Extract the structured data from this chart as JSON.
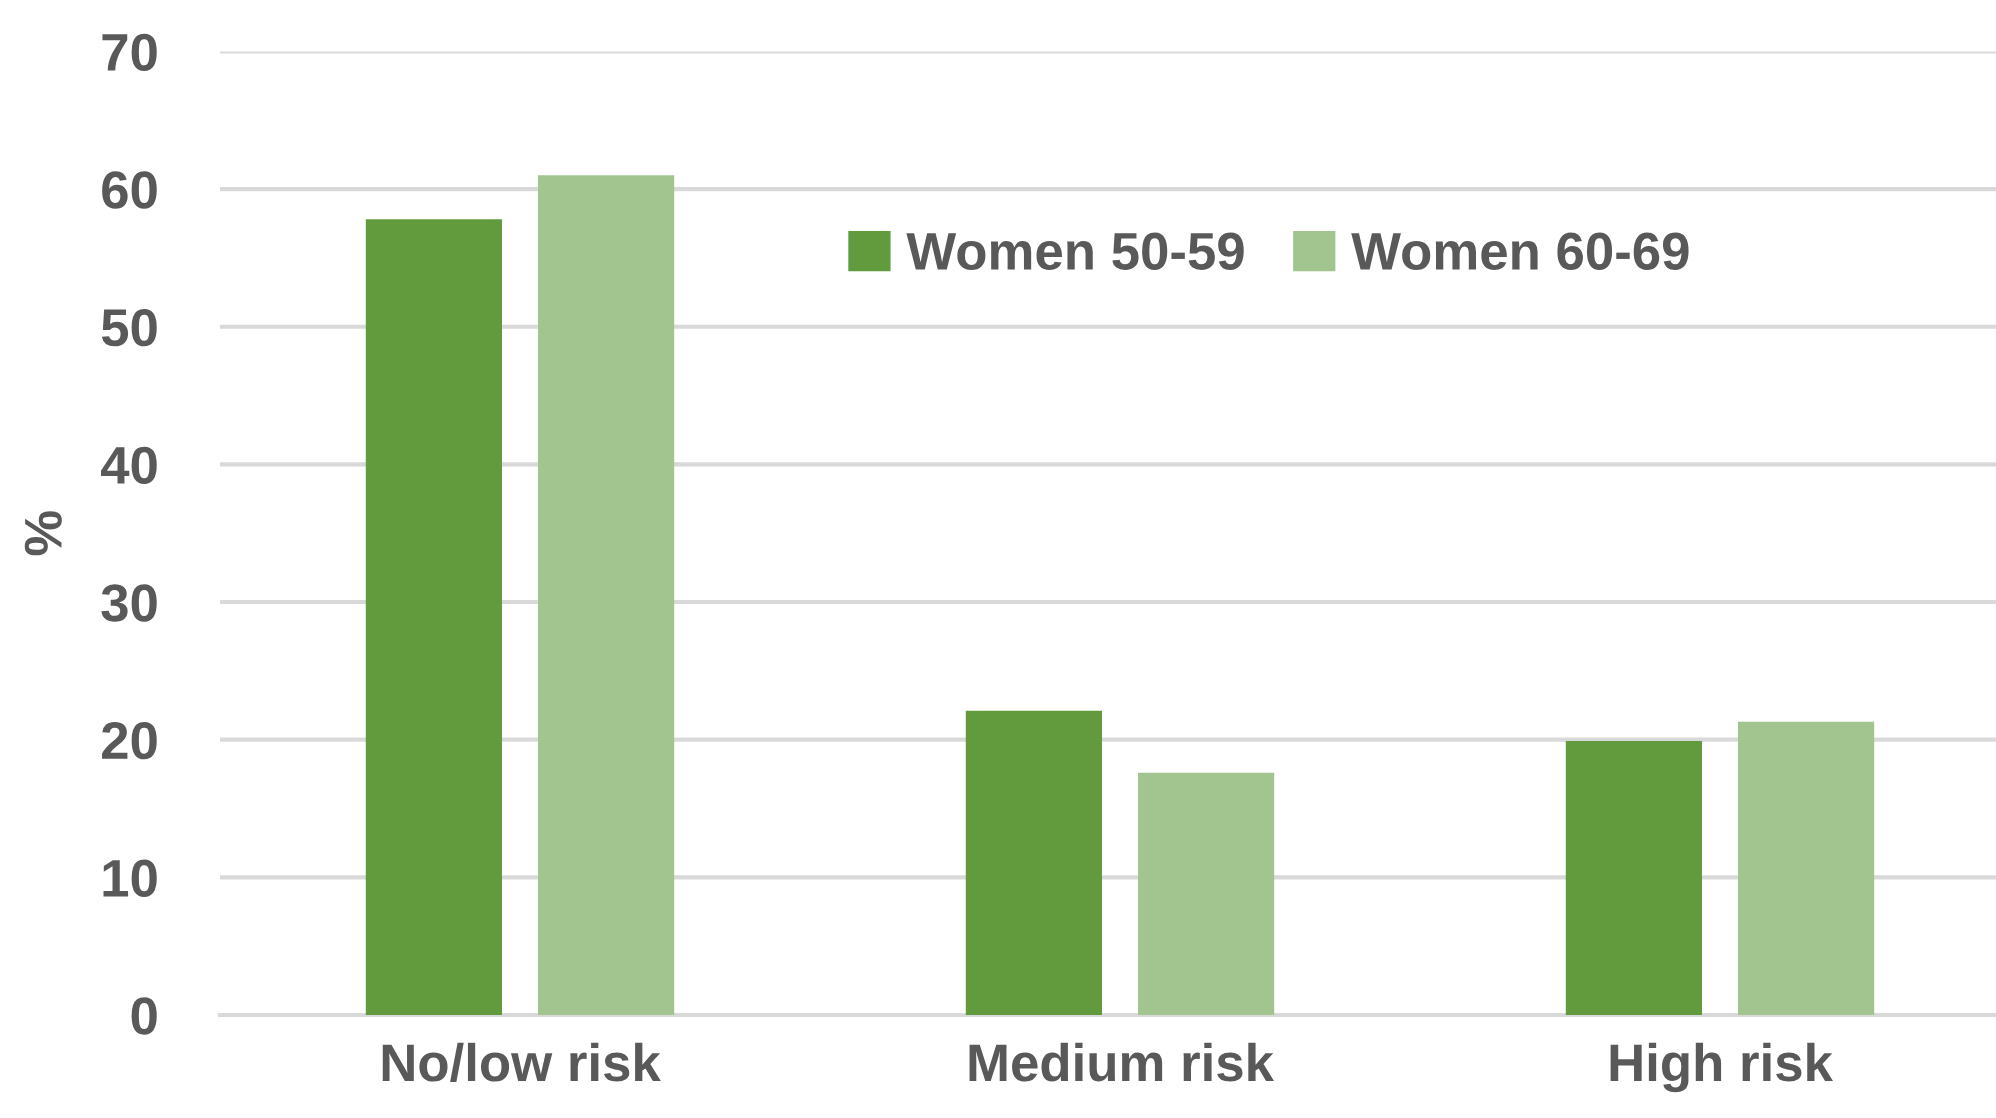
{
  "chart_data": {
    "type": "bar",
    "ylabel": "%",
    "categories": [
      "No/low risk",
      "Medium risk",
      "High risk"
    ],
    "series": [
      {
        "name": "Women 50-59",
        "color": "#629a3e",
        "values": [
          57.8,
          22.1,
          19.9
        ]
      },
      {
        "name": "Women 60-69",
        "color": "#a2c48f",
        "values": [
          61.0,
          17.6,
          21.3
        ]
      }
    ],
    "ylim": [
      0,
      70
    ],
    "yticks": [
      0,
      10,
      20,
      30,
      40,
      50,
      60,
      70
    ],
    "grid": "y",
    "legend": "top"
  }
}
